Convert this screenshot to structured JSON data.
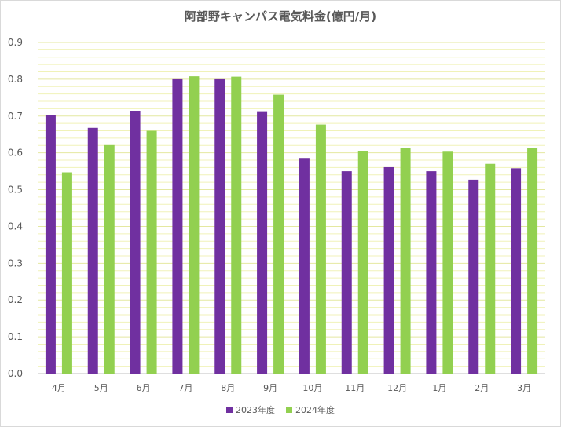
{
  "chart_data": {
    "type": "bar",
    "title": "阿部野キャンパス電気料金(億円/月)",
    "xlabel": "",
    "ylabel": "",
    "categories": [
      "4月",
      "5月",
      "6月",
      "7月",
      "8月",
      "9月",
      "10月",
      "11月",
      "12月",
      "1月",
      "2月",
      "3月"
    ],
    "series": [
      {
        "name": "2023年度",
        "color": "#7030a0",
        "values": [
          0.703,
          0.668,
          0.713,
          0.8,
          0.8,
          0.711,
          0.586,
          0.55,
          0.561,
          0.55,
          0.527,
          0.558
        ]
      },
      {
        "name": "2024年度",
        "color": "#92d050",
        "values": [
          0.547,
          0.621,
          0.66,
          0.808,
          0.807,
          0.758,
          0.677,
          0.605,
          0.613,
          0.603,
          0.57,
          0.613
        ]
      }
    ],
    "ylim": [
      0,
      0.9
    ],
    "yticks": [
      "0.0",
      "0.1",
      "0.2",
      "0.3",
      "0.4",
      "0.5",
      "0.6",
      "0.7",
      "0.8",
      "0.9"
    ],
    "grid": true,
    "gridColor": "#f0f2b8",
    "legend_position": "bottom"
  }
}
